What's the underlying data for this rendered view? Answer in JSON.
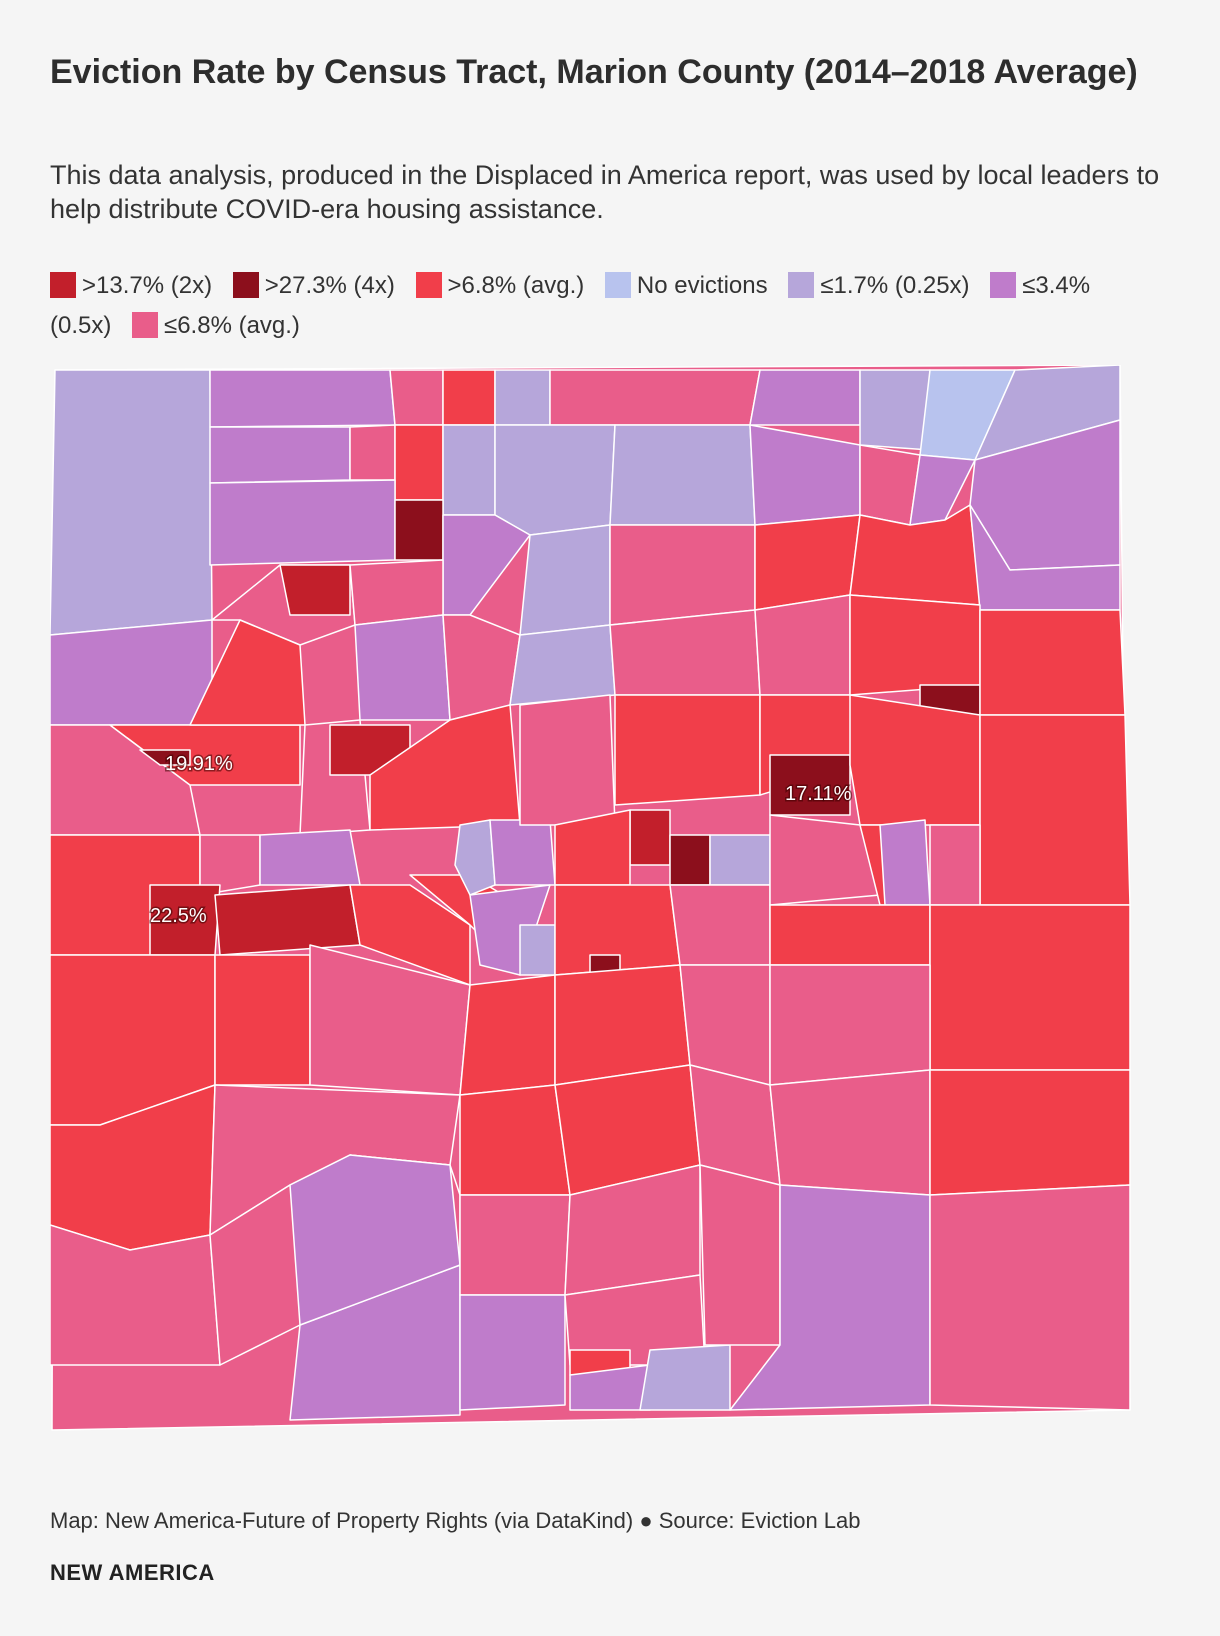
{
  "title": "Eviction Rate by Census Tract, Marion County (2014–2018 Average)",
  "subtitle": "This data analysis, produced in the Displaced in America report, was used by local leaders to help distribute COVID-era housing assistance.",
  "legend": [
    {
      "label": ">13.7% (2x)",
      "color": "#c21f2b"
    },
    {
      "label": ">27.3% (4x)",
      "color": "#8c0f1c"
    },
    {
      "label": ">6.8% (avg.)",
      "color": "#f13e4a"
    },
    {
      "label": "No evictions",
      "color": "#b8c3ee"
    },
    {
      "label": "≤1.7% (0.25x)",
      "color": "#b6a6da"
    },
    {
      "label": "≤3.4% (0.5x)",
      "color": "#bf7ccb"
    },
    {
      "label": "≤6.8% (avg.)",
      "color": "#e95d8a"
    }
  ],
  "map_labels": [
    "19.91%",
    "17.11%",
    "22.5%"
  ],
  "credit": "Map: New America-Future of Property Rights (via DataKind) ● Source: Eviction Lab",
  "brand": "NEW AMERICA"
}
